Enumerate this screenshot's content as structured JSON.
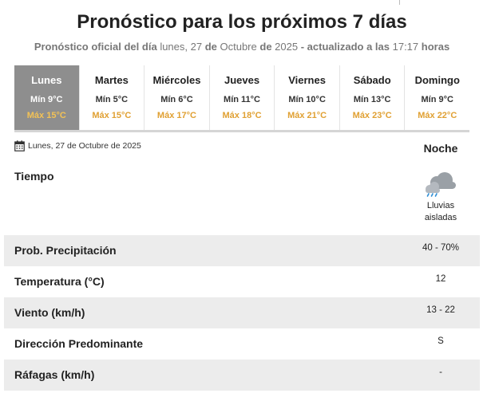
{
  "header": {
    "title": "Pronóstico para los próximos 7 días",
    "subtitle_prefix": "Pronóstico oficial del día",
    "subtitle_date_day": "lunes, 27",
    "subtitle_de1": "de",
    "subtitle_month": "Octubre",
    "subtitle_de2": "de",
    "subtitle_year": "2025",
    "subtitle_updated": "- actualizado a las",
    "subtitle_time": "17:17",
    "subtitle_horas": "horas"
  },
  "days": [
    {
      "name": "Lunes",
      "min": "Mín 9°C",
      "max": "Máx 15°C",
      "active": true
    },
    {
      "name": "Martes",
      "min": "Mín 5°C",
      "max": "Máx 15°C",
      "active": false
    },
    {
      "name": "Miércoles",
      "min": "Mín 6°C",
      "max": "Máx 17°C",
      "active": false
    },
    {
      "name": "Jueves",
      "min": "Mín 11°C",
      "max": "Máx 18°C",
      "active": false
    },
    {
      "name": "Viernes",
      "min": "Mín 10°C",
      "max": "Máx 21°C",
      "active": false
    },
    {
      "name": "Sábado",
      "min": "Mín 13°C",
      "max": "Máx 23°C",
      "active": false
    },
    {
      "name": "Domingo",
      "min": "Mín 9°C",
      "max": "Máx 22°C",
      "active": false
    }
  ],
  "detail": {
    "date": "Lunes, 27 de Octubre de 2025",
    "period": "Noche",
    "tiempo_label": "Tiempo",
    "weather_icon": "cloud-rain-icon",
    "weather_desc_line1": "Lluvias",
    "weather_desc_line2": "aisladas",
    "rows": [
      {
        "label": "Prob. Precipitación",
        "value": "40 - 70%"
      },
      {
        "label": "Temperatura (°C)",
        "value": "12"
      },
      {
        "label": "Viento (km/h)",
        "value": "13 - 22"
      },
      {
        "label": "Dirección Predominante",
        "value": "S"
      },
      {
        "label": "Ráfagas (km/h)",
        "value": "-"
      }
    ]
  },
  "colors": {
    "active_tab_bg": "#8e8e8e",
    "max_temp": "#e0a032",
    "row_shade": "#ececec"
  }
}
